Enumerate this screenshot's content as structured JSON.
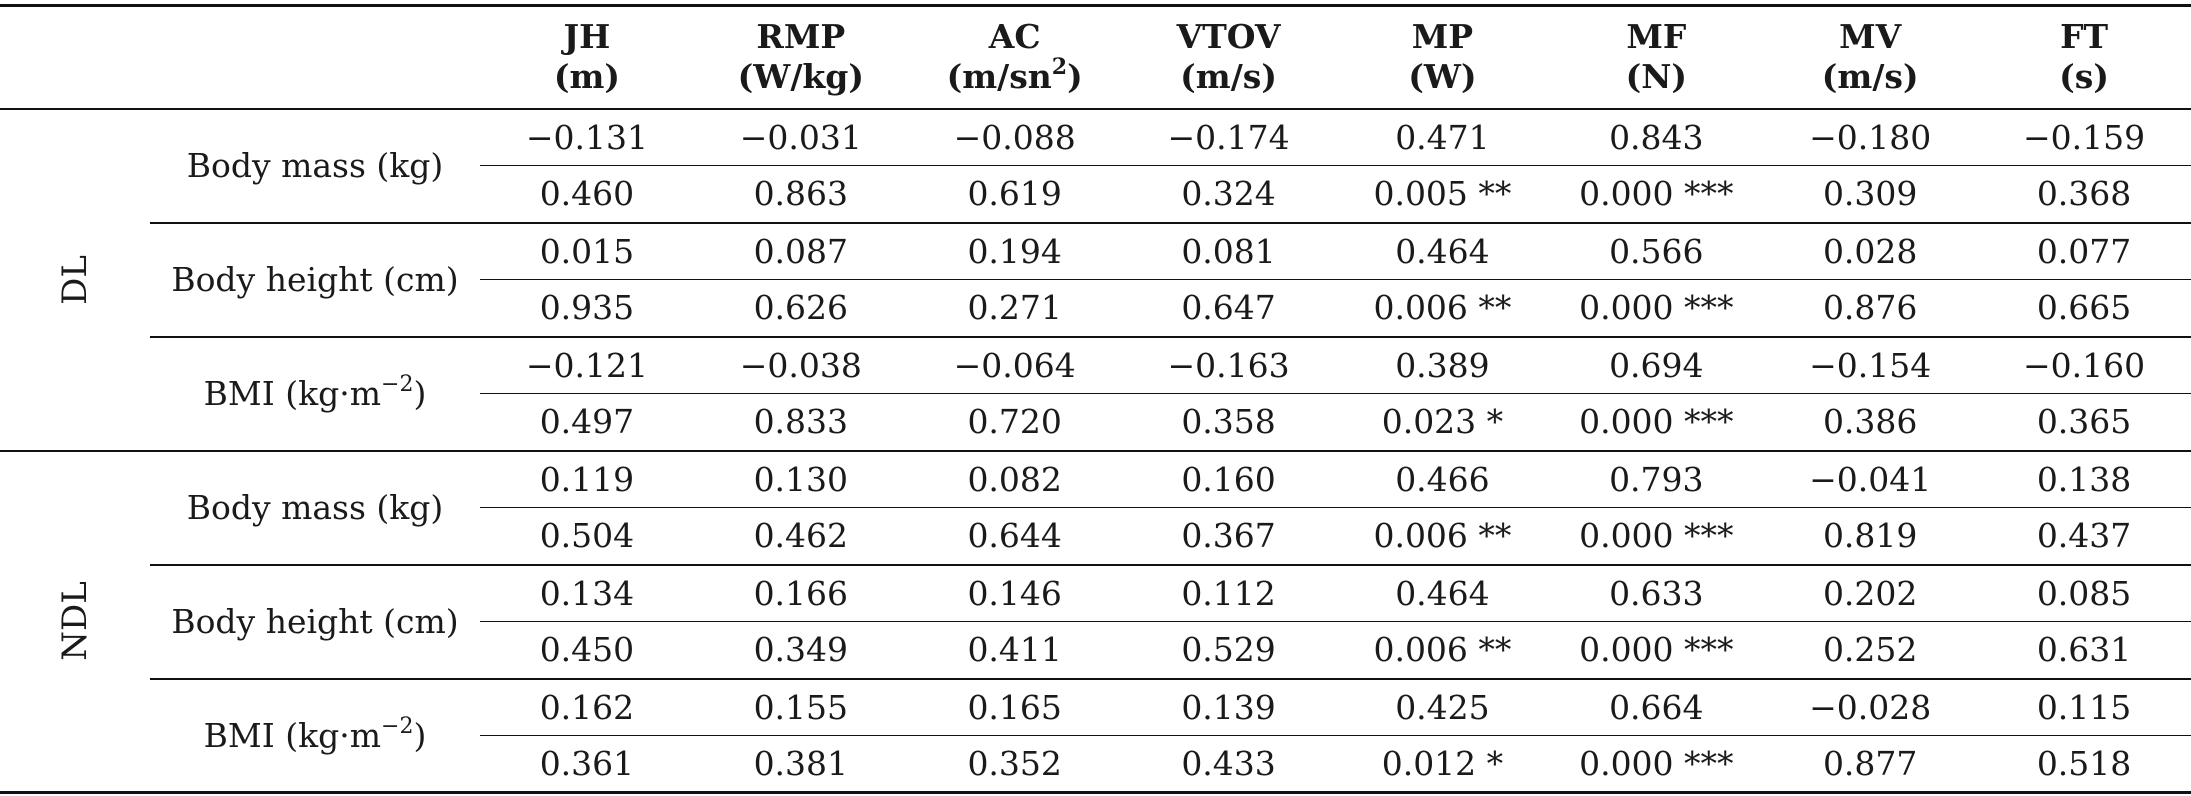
{
  "header": {
    "columns": [
      {
        "name": "JH",
        "unit": "(m)"
      },
      {
        "name": "RMP",
        "unit": "(W/kg)"
      },
      {
        "name": "AC",
        "unit_pre": "(m/sn",
        "unit_sup": "2",
        "unit_post": ")"
      },
      {
        "name": "VTOV",
        "unit": "(m/s)"
      },
      {
        "name": "MP",
        "unit": "(W)"
      },
      {
        "name": "MF",
        "unit": "(N)"
      },
      {
        "name": "MV",
        "unit": "(m/s)"
      },
      {
        "name": "FT",
        "unit": "(s)"
      }
    ]
  },
  "groups": [
    {
      "label": "DL",
      "rows": [
        {
          "var_pre": "Body mass (kg)",
          "var_sup": "",
          "var_post": "",
          "r": [
            "−0.131",
            "−0.031",
            "−0.088",
            "−0.174",
            "0.471",
            "0.843",
            "−0.180",
            "−0.159"
          ],
          "p": [
            "0.460",
            "0.863",
            "0.619",
            "0.324",
            "0.005 **",
            "0.000 ***",
            "0.309",
            "0.368"
          ]
        },
        {
          "var_pre": "Body height (cm)",
          "var_sup": "",
          "var_post": "",
          "r": [
            "0.015",
            "0.087",
            "0.194",
            "0.081",
            "0.464",
            "0.566",
            "0.028",
            "0.077"
          ],
          "p": [
            "0.935",
            "0.626",
            "0.271",
            "0.647",
            "0.006 **",
            "0.000 ***",
            "0.876",
            "0.665"
          ]
        },
        {
          "var_pre": "BMI (kg·m",
          "var_sup": "−2",
          "var_post": ")",
          "r": [
            "−0.121",
            "−0.038",
            "−0.064",
            "−0.163",
            "0.389",
            "0.694",
            "−0.154",
            "−0.160"
          ],
          "p": [
            "0.497",
            "0.833",
            "0.720",
            "0.358",
            "0.023 *",
            "0.000 ***",
            "0.386",
            "0.365"
          ]
        }
      ]
    },
    {
      "label": "NDL",
      "rows": [
        {
          "var_pre": "Body mass (kg)",
          "var_sup": "",
          "var_post": "",
          "r": [
            "0.119",
            "0.130",
            "0.082",
            "0.160",
            "0.466",
            "0.793",
            "−0.041",
            "0.138"
          ],
          "p": [
            "0.504",
            "0.462",
            "0.644",
            "0.367",
            "0.006 **",
            "0.000 ***",
            "0.819",
            "0.437"
          ]
        },
        {
          "var_pre": "Body height (cm)",
          "var_sup": "",
          "var_post": "",
          "r": [
            "0.134",
            "0.166",
            "0.146",
            "0.112",
            "0.464",
            "0.633",
            "0.202",
            "0.085"
          ],
          "p": [
            "0.450",
            "0.349",
            "0.411",
            "0.529",
            "0.006 **",
            "0.000 ***",
            "0.252",
            "0.631"
          ]
        },
        {
          "var_pre": "BMI (kg·m",
          "var_sup": "−2",
          "var_post": ")",
          "r": [
            "0.162",
            "0.155",
            "0.165",
            "0.139",
            "0.425",
            "0.664",
            "−0.028",
            "0.115"
          ],
          "p": [
            "0.361",
            "0.381",
            "0.352",
            "0.433",
            "0.012 *",
            "0.000 ***",
            "0.877",
            "0.518"
          ]
        }
      ]
    }
  ]
}
